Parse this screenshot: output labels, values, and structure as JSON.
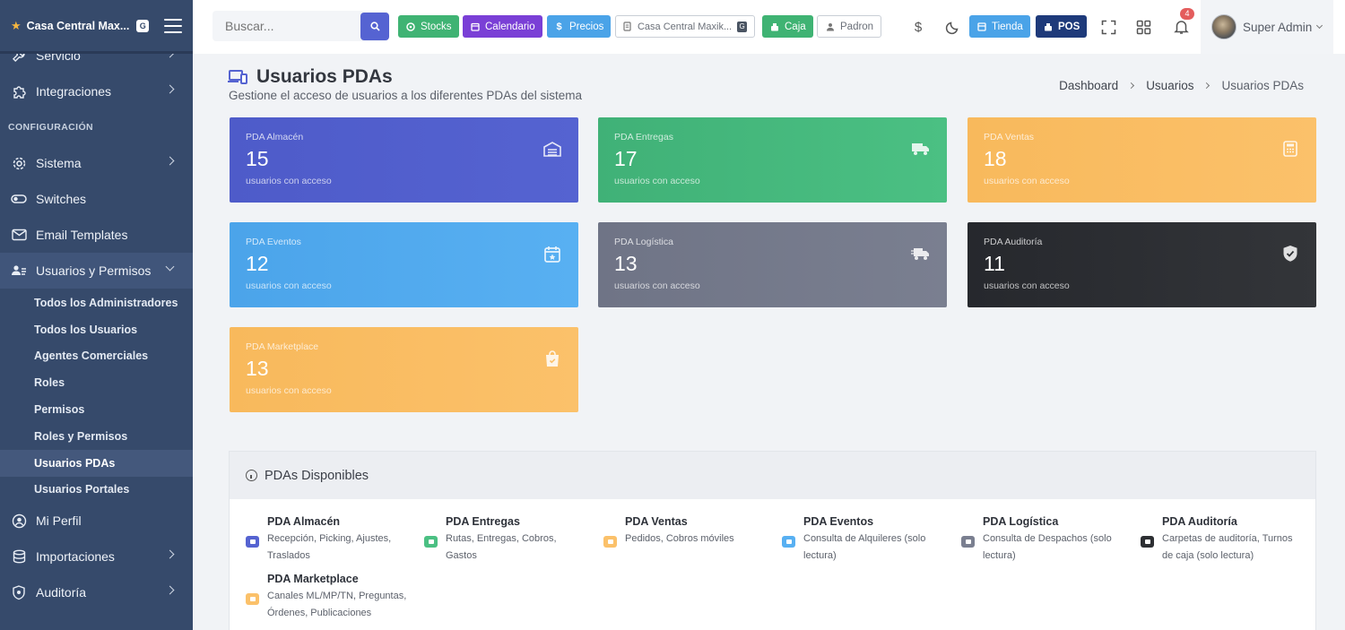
{
  "brand": {
    "name": "Casa Central Max...",
    "badge": "G"
  },
  "sidebar": {
    "items_top": [
      {
        "label": "Servicio",
        "icon": "wrench-icon"
      },
      {
        "label": "Integraciones",
        "icon": "puzzle-icon"
      }
    ],
    "section_label": "CONFIGURACIÓN",
    "items_config": [
      {
        "label": "Sistema",
        "icon": "gear-icon"
      },
      {
        "label": "Switches",
        "icon": "toggle-icon"
      },
      {
        "label": "Email Templates",
        "icon": "email-icon"
      },
      {
        "label": "Usuarios y Permisos",
        "icon": "users-icon"
      }
    ],
    "sub_items": [
      "Todos los Administradores",
      "Todos los Usuarios",
      "Agentes Comerciales",
      "Roles",
      "Permisos",
      "Roles y Permisos",
      "Usuarios PDAs",
      "Usuarios Portales"
    ],
    "items_bottom": [
      {
        "label": "Mi Perfil",
        "icon": "user-circle-icon"
      },
      {
        "label": "Importaciones",
        "icon": "database-icon"
      },
      {
        "label": "Auditoría",
        "icon": "shield-icon"
      }
    ]
  },
  "topbar": {
    "search_placeholder": "Buscar...",
    "buttons": {
      "stocks": "Stocks",
      "calendario": "Calendario",
      "precios": "Precios",
      "branch": "Casa Central Maxik...",
      "branch_badge": "G",
      "caja": "Caja",
      "padron": "Padron",
      "tienda": "Tienda",
      "pos": "POS"
    },
    "notifications_count": "4",
    "user_name": "Super Admin"
  },
  "colors": {
    "sidebar": "#364a6b",
    "primary": "#5563d1",
    "stocks": "#3fb373",
    "calendario": "#7a3fd6",
    "precios": "#4aa3e8",
    "caja": "#3fb373",
    "tienda": "#4aa3e8",
    "pos": "#1e3a7a"
  },
  "page": {
    "title": "Usuarios PDAs",
    "subtitle": "Gestione el acceso de usuarios a los diferentes PDAs del sistema",
    "breadcrumb": [
      "Dashboard",
      "Usuarios",
      "Usuarios PDAs"
    ]
  },
  "cards": [
    {
      "label": "PDA Almacén",
      "value": "15",
      "footer": "usuarios con acceso",
      "icon": "warehouse-icon",
      "color": "#5563d1"
    },
    {
      "label": "PDA Entregas",
      "value": "17",
      "footer": "usuarios con acceso",
      "icon": "truck-icon",
      "color": "#4bc083"
    },
    {
      "label": "PDA Ventas",
      "value": "18",
      "footer": "usuarios con acceso",
      "icon": "cash-register-icon",
      "color": "#fbc16a"
    },
    {
      "label": "PDA Eventos",
      "value": "12",
      "footer": "usuarios con acceso",
      "icon": "calendar-star-icon",
      "color": "#58b0f2"
    },
    {
      "label": "PDA Logística",
      "value": "13",
      "footer": "usuarios con acceso",
      "icon": "truck-fast-icon",
      "color": "#7a7f90"
    },
    {
      "label": "PDA Auditoría",
      "value": "11",
      "footer": "usuarios con acceso",
      "icon": "shield-check-icon",
      "color": "#2d2f33"
    },
    {
      "label": "PDA Marketplace",
      "value": "13",
      "footer": "usuarios con acceso",
      "icon": "shopping-bag-icon",
      "color": "#fbc16a"
    }
  ],
  "panel": {
    "title": "PDAs Disponibles",
    "items": [
      {
        "title": "PDA Almacén",
        "desc": "Recepción, Picking, Ajustes, Traslados",
        "color": "#5563d1"
      },
      {
        "title": "PDA Entregas",
        "desc": "Rutas, Entregas, Cobros, Gastos",
        "color": "#4bc083"
      },
      {
        "title": "PDA Ventas",
        "desc": "Pedidos, Cobros móviles",
        "color": "#fbc16a"
      },
      {
        "title": "PDA Eventos",
        "desc": "Consulta de Alquileres (solo lectura)",
        "color": "#58b0f2"
      },
      {
        "title": "PDA Logística",
        "desc": "Consulta de Despachos (solo lectura)",
        "color": "#7a7f90"
      },
      {
        "title": "PDA Auditoría",
        "desc": "Carpetas de auditoría, Turnos de caja (solo lectura)",
        "color": "#2d2f33"
      },
      {
        "title": "PDA Marketplace",
        "desc": "Canales ML/MP/TN, Preguntas, Órdenes, Publicaciones",
        "color": "#fbc16a"
      }
    ]
  }
}
